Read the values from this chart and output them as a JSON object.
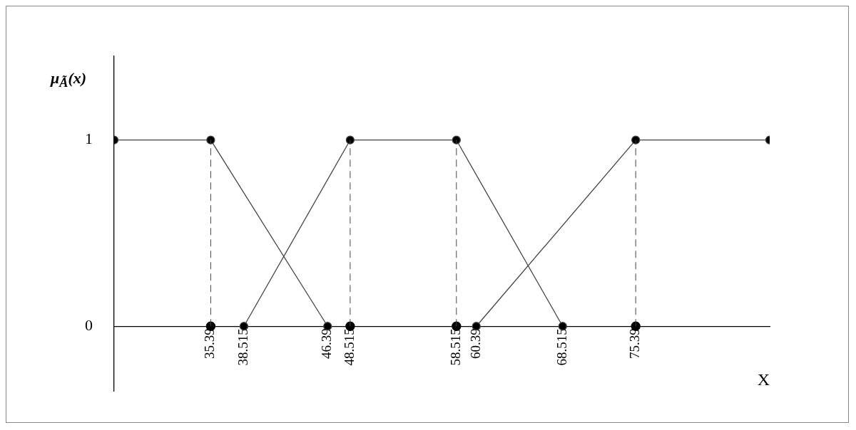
{
  "chart_data": {
    "type": "line",
    "xlabel": "X",
    "ylabel": "μ$_{Ã}$(x)",
    "xlim": [
      26.3,
      88
    ],
    "ylim": [
      -0.35,
      1.45
    ],
    "xticks": [
      35.39,
      38.515,
      46.39,
      48.515,
      58.515,
      60.39,
      68.515,
      75.39
    ],
    "yticks": [
      0,
      1
    ],
    "grid": false,
    "legend": false,
    "marker": "circle",
    "series": [
      {
        "color": "#444444",
        "x": [
          26.3,
          35.39,
          46.39
        ],
        "values": [
          1,
          1,
          0
        ]
      },
      {
        "color": "#444444",
        "x": [
          38.515,
          48.515,
          58.515,
          68.515
        ],
        "values": [
          0,
          1,
          1,
          0
        ]
      },
      {
        "color": "#444444",
        "x": [
          60.39,
          75.39,
          88
        ],
        "values": [
          0,
          1,
          1
        ]
      },
      {
        "type": "scatter",
        "color": "#000000",
        "x": [
          35.39,
          48.515,
          58.515,
          75.39
        ],
        "values": [
          0,
          0,
          0,
          0
        ]
      }
    ],
    "ref_lines": [
      {
        "axis": "x",
        "value": 35.39,
        "line_style": "dashed"
      },
      {
        "axis": "x",
        "value": 48.515,
        "line_style": "dashed"
      },
      {
        "axis": "x",
        "value": 58.515,
        "line_style": "dashed"
      },
      {
        "axis": "x",
        "value": 75.39,
        "line_style": "dashed"
      }
    ]
  }
}
